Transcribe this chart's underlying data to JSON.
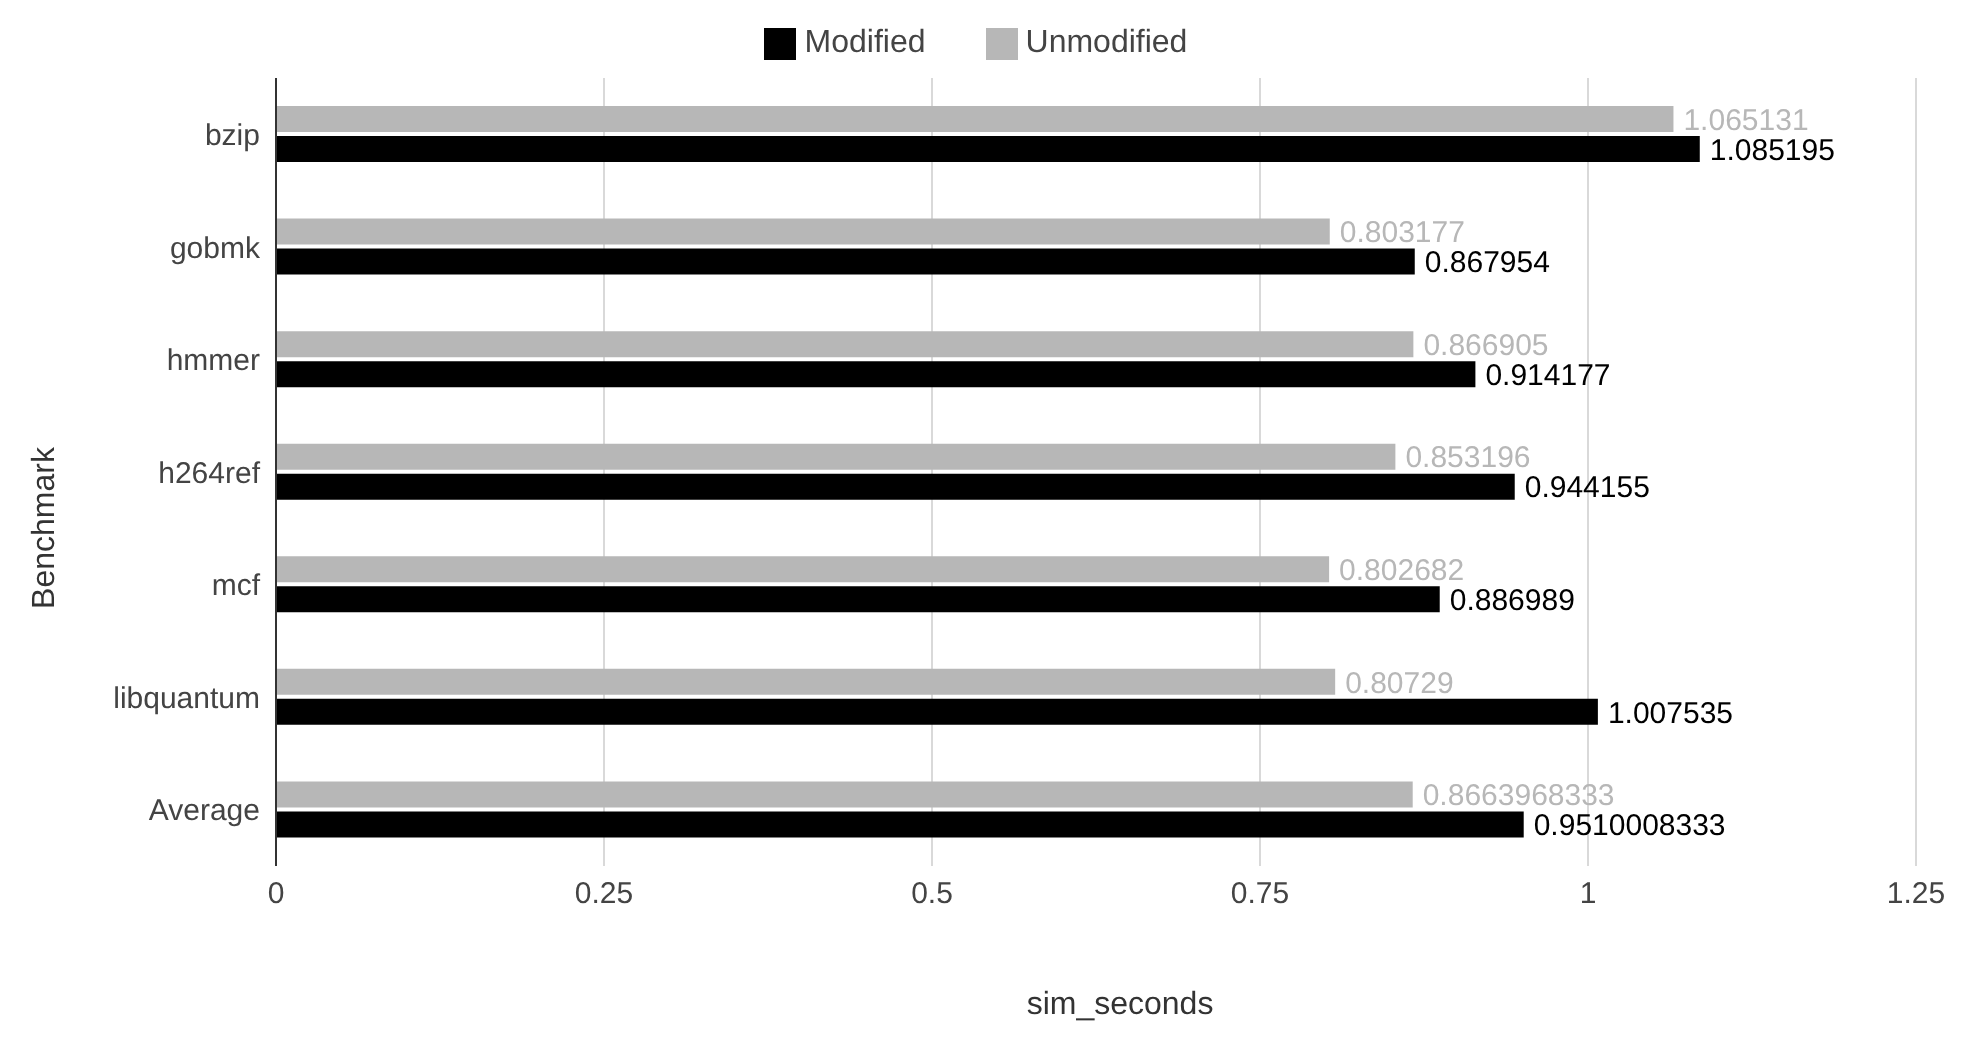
{
  "chart_data": {
    "type": "bar",
    "orientation": "horizontal",
    "xlabel": "sim_seconds",
    "ylabel": "Benchmark",
    "categories": [
      "bzip",
      "gobmk",
      "hmmer",
      "h264ref",
      "mcf",
      "libquantum",
      "Average"
    ],
    "series": [
      {
        "name": "Unmodified",
        "color": "#b7b7b7",
        "values": [
          1.065131,
          0.803177,
          0.866905,
          0.853196,
          0.802682,
          0.80729,
          0.8663968333
        ]
      },
      {
        "name": "Modified",
        "color": "#000000",
        "values": [
          1.085195,
          0.867954,
          0.914177,
          0.944155,
          0.886989,
          1.007535,
          0.9510008333
        ]
      }
    ],
    "xlim": [
      0,
      1.25
    ],
    "xticks": [
      0,
      0.25,
      0.5,
      0.75,
      1,
      1.25
    ],
    "grid": "x",
    "legend": "top",
    "data_labels": true
  }
}
